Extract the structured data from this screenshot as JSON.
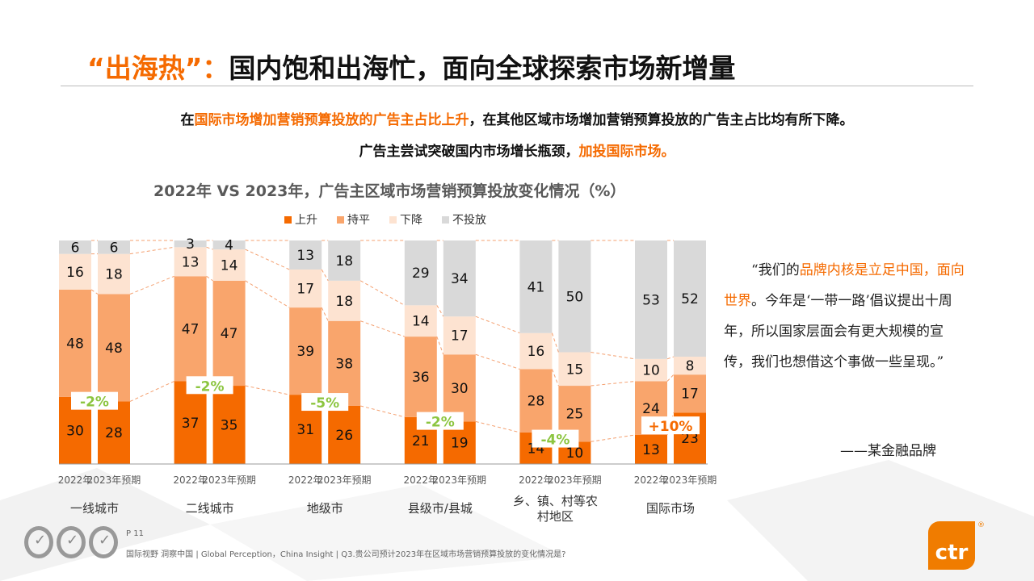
{
  "title": {
    "highlight": "“出海热”：",
    "rest": "国内饱和出海忙，面向全球探索市场新增量"
  },
  "subtitle1": {
    "a": "在",
    "b": "国际市场增加营销预算投放的广告主占比上升",
    "c": "，在其他区域市场增加营销预算投放的广告主占比均有所下降。"
  },
  "subtitle2": {
    "a": "广告主尝试突破国内市场增长瓶颈，",
    "b": "加投国际市场。"
  },
  "quote": {
    "a": "“我们的",
    "b": "品牌内核是立足中国，面向世界",
    "c": "。今年是‘一带一路’倡议提出十周年，所以国家层面会有更大规模的宣传，我们也想借这个事做一些呈现。”",
    "source": "——某金融品牌"
  },
  "footer": {
    "page": "P 11",
    "text": "国际视野  洞察中国 |  Global Perception，China Insight | Q3.贵公司预计2023年在区域市场营销预算投放的变化情况是?",
    "logo": "ctr",
    "seal": "SGS"
  },
  "chart_data": {
    "type": "bar",
    "stacked": true,
    "title": "2022年 VS 2023年，广告主区域市场营销预算投放变化情况（%）",
    "legend_position": "top",
    "colors": {
      "上升": "#f56a00",
      "持平": "#f9a56c",
      "下降": "#fde3d1",
      "不投放": "#d9d9d9",
      "change_negative": "#8cc540",
      "change_positive": "#f56a00"
    },
    "series_names": [
      "上升",
      "持平",
      "下降",
      "不投放"
    ],
    "groups": [
      {
        "name": "一线城市",
        "change": "-2%",
        "bars": [
          {
            "label": "2022年",
            "values": [
              30,
              48,
              16,
              6
            ]
          },
          {
            "label": "2023年预期",
            "values": [
              28,
              48,
              18,
              6
            ]
          }
        ]
      },
      {
        "name": "二线城市",
        "change": "-2%",
        "bars": [
          {
            "label": "2022年",
            "values": [
              37,
              47,
              13,
              3
            ]
          },
          {
            "label": "2023年预期",
            "values": [
              35,
              47,
              14,
              4
            ]
          }
        ]
      },
      {
        "name": "地级市",
        "change": "-5%",
        "bars": [
          {
            "label": "2022年",
            "values": [
              31,
              39,
              17,
              13
            ]
          },
          {
            "label": "2023年预期",
            "values": [
              26,
              38,
              18,
              18
            ]
          }
        ]
      },
      {
        "name": "县级市/县城",
        "change": "-2%",
        "bars": [
          {
            "label": "2022年",
            "values": [
              21,
              36,
              14,
              29
            ]
          },
          {
            "label": "2023年预期",
            "values": [
              19,
              30,
              17,
              34
            ]
          }
        ]
      },
      {
        "name": "乡、镇、村等农村地区",
        "change": "-4%",
        "bars": [
          {
            "label": "2022年",
            "values": [
              14,
              28,
              16,
              41
            ]
          },
          {
            "label": "2023年预期",
            "values": [
              10,
              25,
              15,
              50
            ]
          }
        ]
      },
      {
        "name": "国际市场",
        "change": "+10%",
        "bars": [
          {
            "label": "2022年",
            "values": [
              13,
              24,
              10,
              53
            ]
          },
          {
            "label": "2023年预期",
            "values": [
              23,
              17,
              8,
              52
            ]
          }
        ]
      }
    ]
  }
}
